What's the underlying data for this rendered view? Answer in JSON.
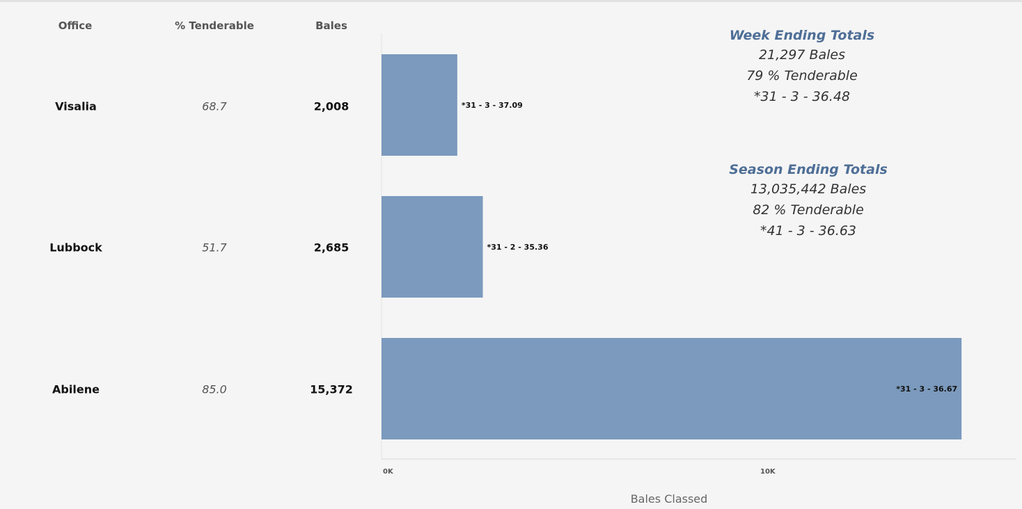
{
  "headers": {
    "office": "Office",
    "pct": "% Tenderable",
    "bales": "Bales"
  },
  "rows": [
    {
      "office": "Visalia",
      "pct": "68.7",
      "bales": "2,008",
      "label": "*31 - 3 - 37.09"
    },
    {
      "office": "Lubbock",
      "pct": "51.7",
      "bales": "2,685",
      "label": "*31 - 2 - 35.36"
    },
    {
      "office": "Abilene",
      "pct": "85.0",
      "bales": "15,372",
      "label": "*31 - 3 - 36.67"
    }
  ],
  "week_totals": {
    "title": "Week Ending Totals",
    "bales": "21,297 Bales",
    "tenderable": "79 % Tenderable",
    "grade": "*31 - 3 - 36.48"
  },
  "season_totals": {
    "title": "Season Ending Totals",
    "bales": "13,035,442 Bales",
    "tenderable": "82 % Tenderable",
    "grade": "*41 - 3 - 36.63"
  },
  "chart_data": {
    "type": "bar",
    "orientation": "horizontal",
    "categories": [
      "Visalia",
      "Lubbock",
      "Abilene"
    ],
    "values": [
      2008,
      2685,
      15372
    ],
    "data_labels": [
      "*31 - 3 - 37.09",
      "*31 - 2 - 35.36",
      "*31 - 3 - 36.67"
    ],
    "xlabel": "Bales Classed",
    "xticks": [
      "0K",
      "10K"
    ],
    "xtick_values": [
      0,
      10000
    ],
    "bar_color": "#7b9abd",
    "grid": false
  }
}
